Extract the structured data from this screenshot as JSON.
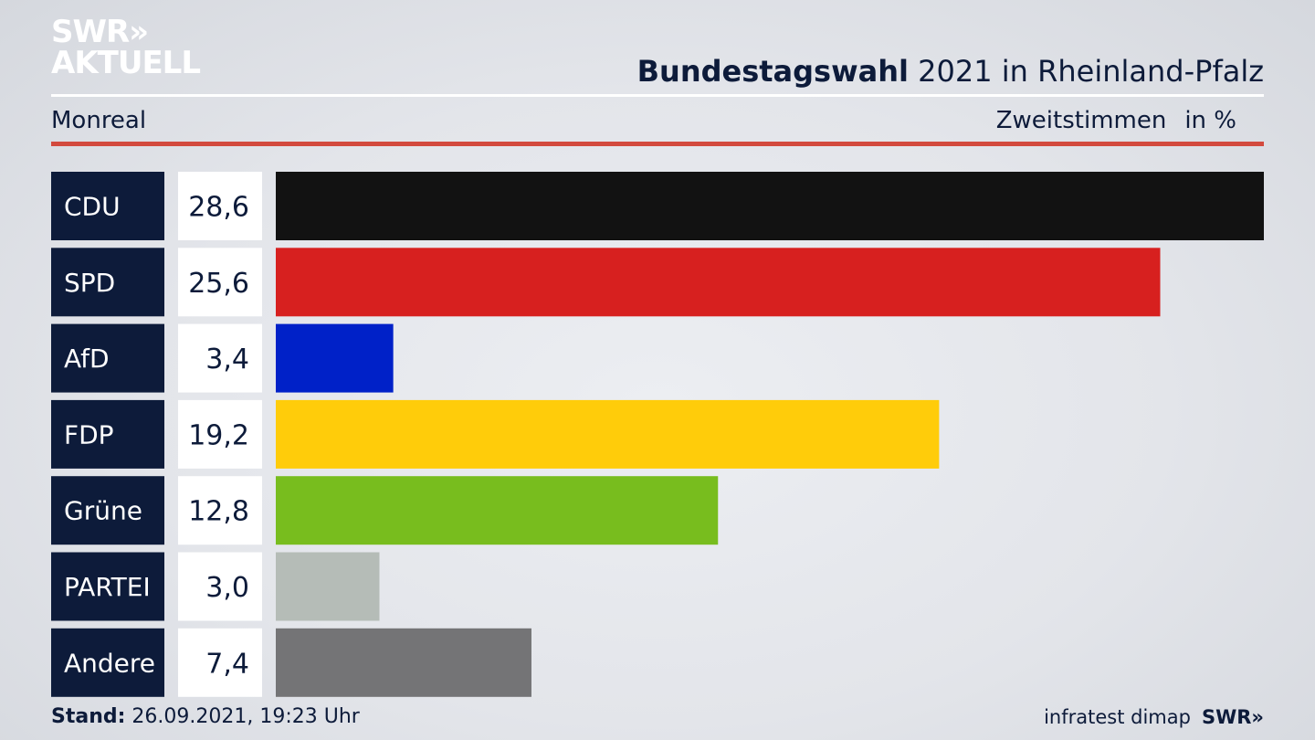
{
  "logo": {
    "line1": "SWR»",
    "line2": "AKTUELL"
  },
  "header": {
    "title_bold": "Bundestagswahl",
    "title_rest": " 2021 in Rheinland-Pfalz",
    "location": "Monreal",
    "measure": "Zweitstimmen",
    "unit": "in %"
  },
  "footer": {
    "stand_label": "Stand:",
    "stand_value": " 26.09.2021, 19:23 Uhr",
    "source": "infratest dimap",
    "brand": "SWR»"
  },
  "chart_data": {
    "type": "bar",
    "orientation": "horizontal",
    "title": "Bundestagswahl 2021 in Rheinland-Pfalz",
    "subtitle": "Monreal",
    "categories": [
      "CDU",
      "SPD",
      "AfD",
      "FDP",
      "Grüne",
      "PARTEI",
      "Andere"
    ],
    "values": [
      28.6,
      25.6,
      3.4,
      19.2,
      12.8,
      3.0,
      7.4
    ],
    "value_labels": [
      "28,6",
      "25,6",
      "3,4",
      "19,2",
      "12,8",
      "3,0",
      "7,4"
    ],
    "colors": [
      "#121212",
      "#d7201f",
      "#0021c8",
      "#ffcc0a",
      "#78bd1e",
      "#b5bcb7",
      "#747476"
    ],
    "xlim": [
      0,
      28.6
    ],
    "grid": false
  }
}
